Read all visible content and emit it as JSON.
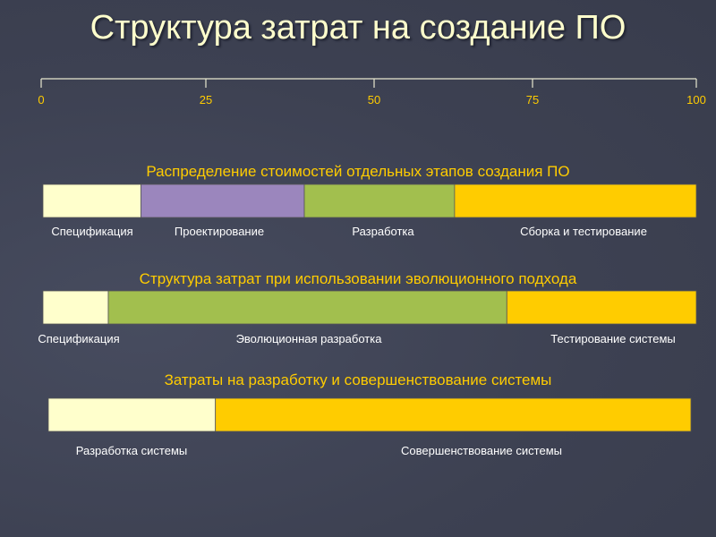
{
  "title": "Структура затрат на создание ПО",
  "chart_data": {
    "type": "bar",
    "orientation": "horizontal-stacked",
    "axis": {
      "min": 0,
      "max": 100,
      "ticks": [
        "0",
        "25",
        "50",
        "75",
        "100"
      ]
    },
    "colors": {
      "title": "#ffffcc",
      "accent": "#ffcc00",
      "label": "#ffffff"
    },
    "bars": [
      {
        "title": "Распределение стоимостей отдельных этапов создания ПО",
        "segments": [
          {
            "label": "Спецификация",
            "value": 15,
            "color": "#ffffcc"
          },
          {
            "label": "Проектирование",
            "value": 25,
            "color": "#9b86bd"
          },
          {
            "label": "Разработка",
            "value": 23,
            "color": "#a2bf4e"
          },
          {
            "label": "Сборка и тестирование",
            "value": 37,
            "color": "#ffcc00"
          }
        ]
      },
      {
        "title": "Структура затрат при использовании эволюционного подхода",
        "segments": [
          {
            "label": "Спецификация",
            "value": 10,
            "color": "#ffffcc"
          },
          {
            "label": "Эволюционная разработка",
            "value": 61,
            "color": "#a2bf4e"
          },
          {
            "label": "Тестирование системы",
            "value": 29,
            "color": "#ffcc00"
          }
        ]
      },
      {
        "title": "Затраты на разработку и совершенствование системы",
        "segments": [
          {
            "label": "Разработка системы",
            "value": 26,
            "color": "#ffffcc"
          },
          {
            "label": "Совершенствование системы",
            "value": 74,
            "color": "#ffcc00"
          }
        ]
      }
    ]
  }
}
